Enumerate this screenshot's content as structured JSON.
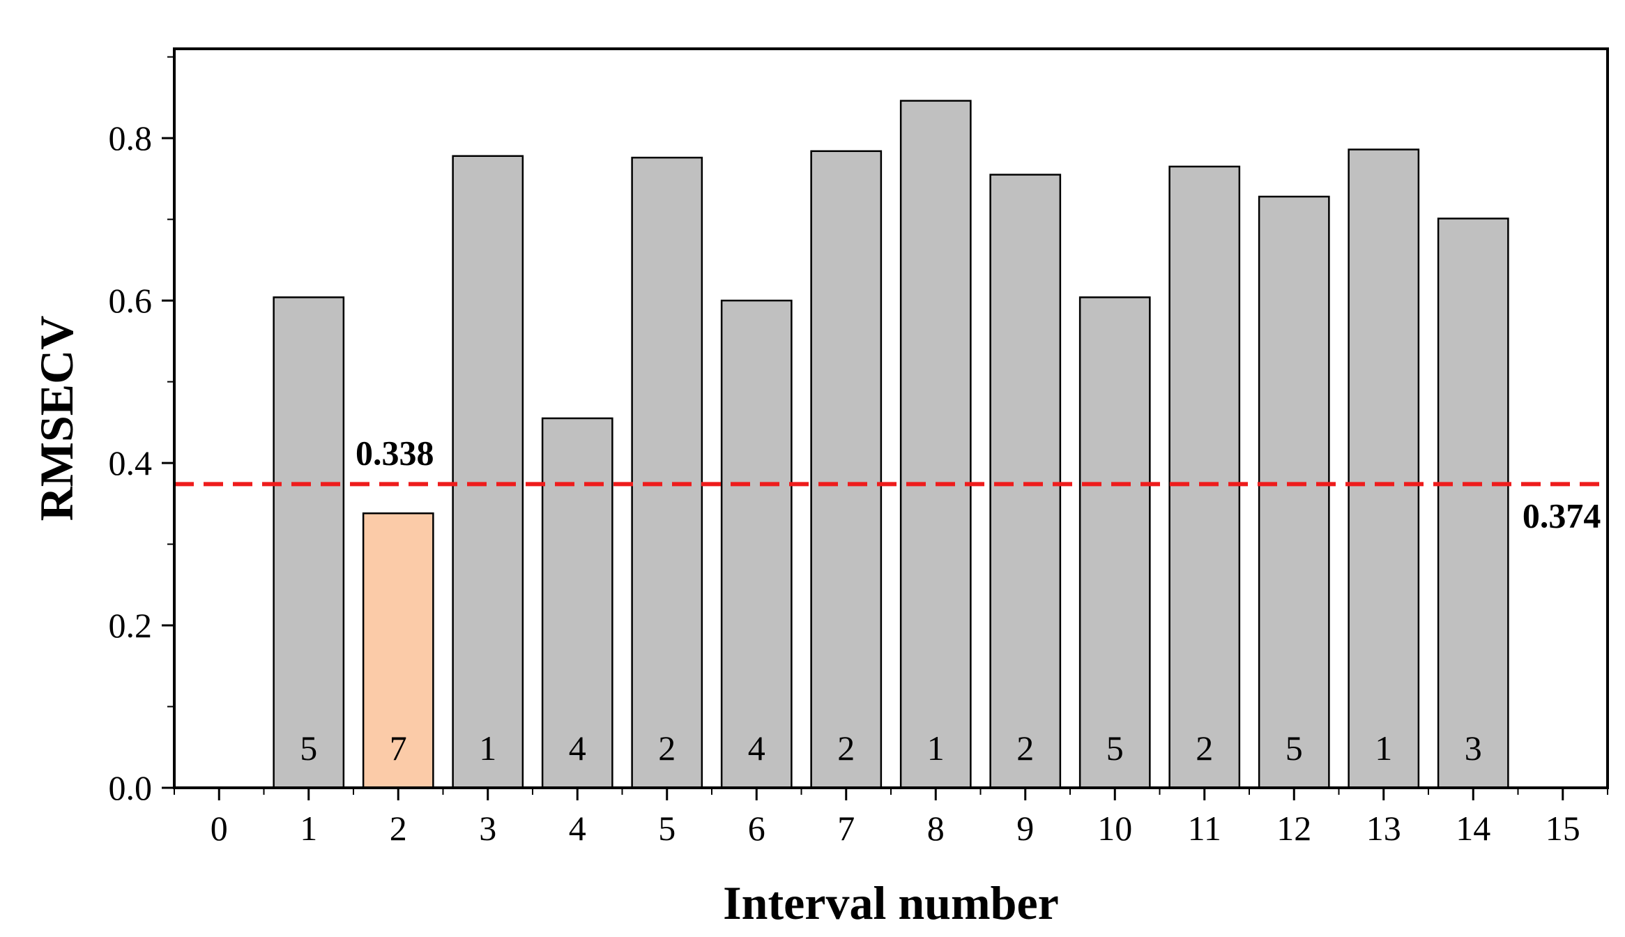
{
  "chart_data": {
    "type": "bar",
    "xlabel": "Interval number",
    "ylabel": "RMSECV",
    "xlim": [
      -0.5,
      15.5
    ],
    "ylim": [
      0,
      0.91
    ],
    "x_ticks": [
      0,
      1,
      2,
      3,
      4,
      5,
      6,
      7,
      8,
      9,
      10,
      11,
      12,
      13,
      14,
      15
    ],
    "y_ticks": [
      0.0,
      0.2,
      0.4,
      0.6,
      0.8
    ],
    "y_tick_labels": [
      "0.0",
      "0.2",
      "0.4",
      "0.6",
      "0.8"
    ],
    "grid": false,
    "x": [
      1,
      2,
      3,
      4,
      5,
      6,
      7,
      8,
      9,
      10,
      11,
      12,
      13,
      14
    ],
    "values": [
      0.604,
      0.338,
      0.778,
      0.455,
      0.776,
      0.6,
      0.784,
      0.846,
      0.755,
      0.604,
      0.765,
      0.728,
      0.786,
      0.701
    ],
    "bar_labels": [
      "5",
      "7",
      "1",
      "4",
      "2",
      "4",
      "2",
      "1",
      "2",
      "5",
      "2",
      "5",
      "1",
      "3"
    ],
    "highlight_x": 2,
    "highlight_label": "0.338",
    "reference_line": {
      "value": 0.374,
      "label": "0.374",
      "style": "dashed"
    },
    "colors": {
      "bar": "#c0c0c0",
      "highlight": "#fbcba8",
      "reference": "#ee1c1c",
      "edge": "#000000"
    }
  }
}
